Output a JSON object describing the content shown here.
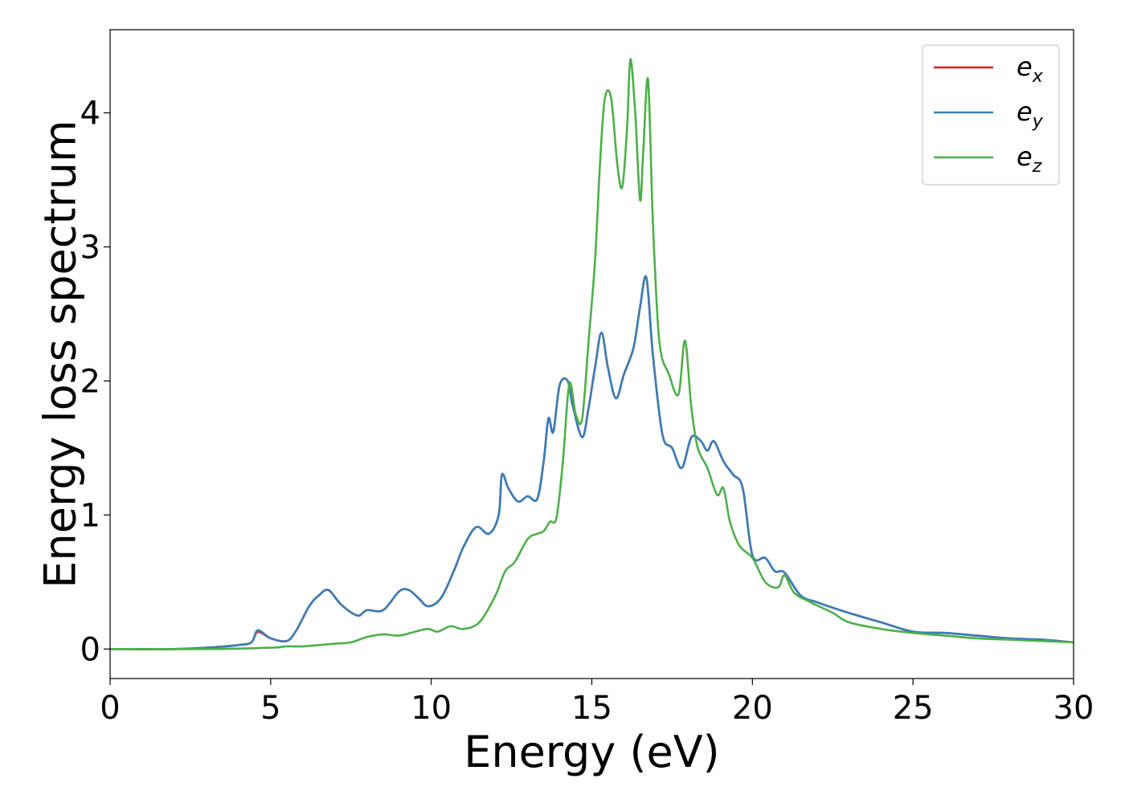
{
  "chart_data": {
    "type": "line",
    "title": "",
    "xlabel": "Energy (eV)",
    "ylabel": "Energy loss spectrum",
    "xlim": [
      0,
      30
    ],
    "ylim": [
      -0.22,
      4.62
    ],
    "xticks": [
      0,
      5,
      10,
      15,
      20,
      25,
      30
    ],
    "xtick_labels": [
      "0",
      "5",
      "10",
      "15",
      "20",
      "25",
      "30"
    ],
    "yticks": [
      0,
      1,
      2,
      3,
      4
    ],
    "ytick_labels": [
      "0",
      "1",
      "2",
      "3",
      "4"
    ],
    "grid": false,
    "legend_position": "top-right",
    "series": [
      {
        "name": "e",
        "subscript": "x",
        "color": "#e41a1c",
        "points": [
          [
            0,
            0
          ],
          [
            2,
            0
          ],
          [
            3,
            0.01
          ],
          [
            4,
            0.03
          ],
          [
            4.4,
            0.05
          ],
          [
            4.6,
            0.13
          ],
          [
            5,
            0.08
          ],
          [
            5.5,
            0.06
          ],
          [
            5.8,
            0.14
          ],
          [
            6.2,
            0.32
          ],
          [
            6.5,
            0.4
          ],
          [
            6.8,
            0.44
          ],
          [
            7.2,
            0.33
          ],
          [
            7.7,
            0.25
          ],
          [
            8,
            0.29
          ],
          [
            8.5,
            0.29
          ],
          [
            9,
            0.43
          ],
          [
            9.3,
            0.44
          ],
          [
            9.6,
            0.38
          ],
          [
            9.9,
            0.32
          ],
          [
            10.3,
            0.38
          ],
          [
            10.7,
            0.58
          ],
          [
            11,
            0.76
          ],
          [
            11.4,
            0.91
          ],
          [
            11.8,
            0.86
          ],
          [
            12.1,
            1.0
          ],
          [
            12.2,
            1.3
          ],
          [
            12.4,
            1.2
          ],
          [
            12.7,
            1.1
          ],
          [
            13,
            1.14
          ],
          [
            13.3,
            1.12
          ],
          [
            13.5,
            1.4
          ],
          [
            13.65,
            1.72
          ],
          [
            13.8,
            1.62
          ],
          [
            14,
            1.97
          ],
          [
            14.25,
            2.0
          ],
          [
            14.4,
            1.82
          ],
          [
            14.7,
            1.58
          ],
          [
            14.9,
            1.8
          ],
          [
            15.1,
            2.1
          ],
          [
            15.3,
            2.36
          ],
          [
            15.5,
            2.1
          ],
          [
            15.75,
            1.87
          ],
          [
            16,
            2.05
          ],
          [
            16.3,
            2.25
          ],
          [
            16.5,
            2.55
          ],
          [
            16.7,
            2.77
          ],
          [
            16.9,
            2.2
          ],
          [
            17.2,
            1.6
          ],
          [
            17.5,
            1.5
          ],
          [
            17.8,
            1.35
          ],
          [
            18.1,
            1.58
          ],
          [
            18.4,
            1.55
          ],
          [
            18.6,
            1.48
          ],
          [
            18.8,
            1.55
          ],
          [
            19.1,
            1.4
          ],
          [
            19.4,
            1.3
          ],
          [
            19.7,
            1.2
          ],
          [
            20,
            0.7
          ],
          [
            20.4,
            0.68
          ],
          [
            20.7,
            0.58
          ],
          [
            21,
            0.57
          ],
          [
            21.5,
            0.4
          ],
          [
            22,
            0.35
          ],
          [
            23,
            0.27
          ],
          [
            24,
            0.2
          ],
          [
            25,
            0.13
          ],
          [
            26,
            0.12
          ],
          [
            27,
            0.1
          ],
          [
            28,
            0.08
          ],
          [
            29,
            0.07
          ],
          [
            30,
            0.05
          ]
        ]
      },
      {
        "name": "e",
        "subscript": "y",
        "color": "#377eb8",
        "points": [
          [
            0,
            0
          ],
          [
            2,
            0
          ],
          [
            3,
            0.01
          ],
          [
            4,
            0.03
          ],
          [
            4.4,
            0.05
          ],
          [
            4.6,
            0.14
          ],
          [
            5,
            0.08
          ],
          [
            5.5,
            0.06
          ],
          [
            5.8,
            0.14
          ],
          [
            6.2,
            0.32
          ],
          [
            6.5,
            0.4
          ],
          [
            6.8,
            0.44
          ],
          [
            7.2,
            0.33
          ],
          [
            7.7,
            0.25
          ],
          [
            8,
            0.29
          ],
          [
            8.5,
            0.29
          ],
          [
            9,
            0.43
          ],
          [
            9.3,
            0.44
          ],
          [
            9.6,
            0.38
          ],
          [
            9.9,
            0.32
          ],
          [
            10.3,
            0.38
          ],
          [
            10.7,
            0.58
          ],
          [
            11,
            0.76
          ],
          [
            11.4,
            0.91
          ],
          [
            11.8,
            0.86
          ],
          [
            12.1,
            1.0
          ],
          [
            12.2,
            1.3
          ],
          [
            12.4,
            1.2
          ],
          [
            12.7,
            1.1
          ],
          [
            13,
            1.14
          ],
          [
            13.3,
            1.12
          ],
          [
            13.5,
            1.4
          ],
          [
            13.65,
            1.72
          ],
          [
            13.8,
            1.62
          ],
          [
            14,
            1.97
          ],
          [
            14.25,
            2.0
          ],
          [
            14.4,
            1.82
          ],
          [
            14.7,
            1.58
          ],
          [
            14.9,
            1.8
          ],
          [
            15.1,
            2.1
          ],
          [
            15.3,
            2.36
          ],
          [
            15.5,
            2.1
          ],
          [
            15.75,
            1.87
          ],
          [
            16,
            2.05
          ],
          [
            16.3,
            2.25
          ],
          [
            16.5,
            2.55
          ],
          [
            16.7,
            2.77
          ],
          [
            16.9,
            2.2
          ],
          [
            17.2,
            1.6
          ],
          [
            17.5,
            1.5
          ],
          [
            17.8,
            1.35
          ],
          [
            18.1,
            1.58
          ],
          [
            18.4,
            1.55
          ],
          [
            18.6,
            1.48
          ],
          [
            18.8,
            1.55
          ],
          [
            19.1,
            1.4
          ],
          [
            19.4,
            1.3
          ],
          [
            19.7,
            1.2
          ],
          [
            20,
            0.7
          ],
          [
            20.4,
            0.68
          ],
          [
            20.7,
            0.58
          ],
          [
            21,
            0.57
          ],
          [
            21.5,
            0.4
          ],
          [
            22,
            0.35
          ],
          [
            23,
            0.27
          ],
          [
            24,
            0.2
          ],
          [
            25,
            0.13
          ],
          [
            26,
            0.12
          ],
          [
            27,
            0.1
          ],
          [
            28,
            0.08
          ],
          [
            29,
            0.07
          ],
          [
            30,
            0.05
          ]
        ]
      },
      {
        "name": "e",
        "subscript": "z",
        "color": "#4daf4a",
        "points": [
          [
            0,
            0
          ],
          [
            3,
            0
          ],
          [
            5,
            0.01
          ],
          [
            5.5,
            0.02
          ],
          [
            6,
            0.02
          ],
          [
            7,
            0.04
          ],
          [
            7.5,
            0.05
          ],
          [
            8,
            0.09
          ],
          [
            8.5,
            0.11
          ],
          [
            9,
            0.1
          ],
          [
            9.5,
            0.13
          ],
          [
            9.9,
            0.15
          ],
          [
            10.2,
            0.13
          ],
          [
            10.6,
            0.17
          ],
          [
            11,
            0.15
          ],
          [
            11.5,
            0.2
          ],
          [
            12,
            0.4
          ],
          [
            12.3,
            0.58
          ],
          [
            12.6,
            0.65
          ],
          [
            13,
            0.82
          ],
          [
            13.3,
            0.86
          ],
          [
            13.5,
            0.88
          ],
          [
            13.7,
            0.95
          ],
          [
            13.9,
            0.98
          ],
          [
            14.1,
            1.4
          ],
          [
            14.3,
            1.98
          ],
          [
            14.5,
            1.75
          ],
          [
            14.7,
            1.72
          ],
          [
            14.9,
            2.3
          ],
          [
            15.1,
            2.9
          ],
          [
            15.25,
            3.6
          ],
          [
            15.4,
            4.1
          ],
          [
            15.6,
            4.11
          ],
          [
            15.8,
            3.6
          ],
          [
            15.95,
            3.45
          ],
          [
            16.1,
            3.9
          ],
          [
            16.2,
            4.4
          ],
          [
            16.35,
            4.0
          ],
          [
            16.5,
            3.35
          ],
          [
            16.6,
            3.7
          ],
          [
            16.75,
            4.25
          ],
          [
            16.9,
            3.2
          ],
          [
            17.1,
            2.3
          ],
          [
            17.4,
            2.05
          ],
          [
            17.7,
            1.9
          ],
          [
            17.9,
            2.3
          ],
          [
            18.1,
            1.8
          ],
          [
            18.3,
            1.5
          ],
          [
            18.6,
            1.35
          ],
          [
            18.9,
            1.15
          ],
          [
            19.1,
            1.2
          ],
          [
            19.3,
            0.95
          ],
          [
            19.6,
            0.77
          ],
          [
            20,
            0.68
          ],
          [
            20.4,
            0.5
          ],
          [
            20.8,
            0.46
          ],
          [
            21,
            0.55
          ],
          [
            21.3,
            0.42
          ],
          [
            21.8,
            0.35
          ],
          [
            22.5,
            0.27
          ],
          [
            23,
            0.2
          ],
          [
            24,
            0.15
          ],
          [
            25,
            0.12
          ],
          [
            26,
            0.1
          ],
          [
            27,
            0.08
          ],
          [
            28,
            0.07
          ],
          [
            29,
            0.06
          ],
          [
            30,
            0.05
          ]
        ]
      }
    ]
  }
}
